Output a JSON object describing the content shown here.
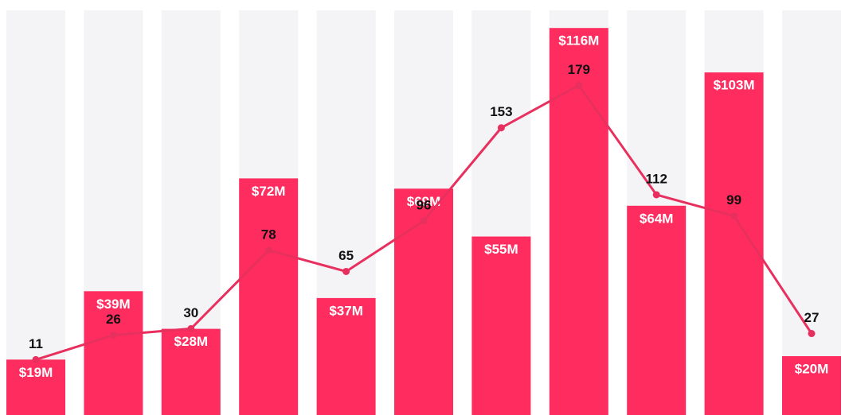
{
  "chart_data": {
    "type": "bar",
    "bars": {
      "values": [
        19,
        39,
        28,
        72,
        37,
        69,
        55,
        116,
        64,
        103,
        20
      ],
      "value_labels": [
        "$19M",
        "$39M",
        "$28M",
        "$72M",
        "$37M",
        "$69M",
        "$55M",
        "$116M",
        "$64M",
        "$103M",
        "$20M"
      ],
      "color": "#ff2d5f"
    },
    "line": {
      "values": [
        11,
        26,
        30,
        78,
        65,
        96,
        153,
        179,
        112,
        99,
        27
      ],
      "color": "#e8305f"
    },
    "background_color": "#f4f3f6"
  }
}
